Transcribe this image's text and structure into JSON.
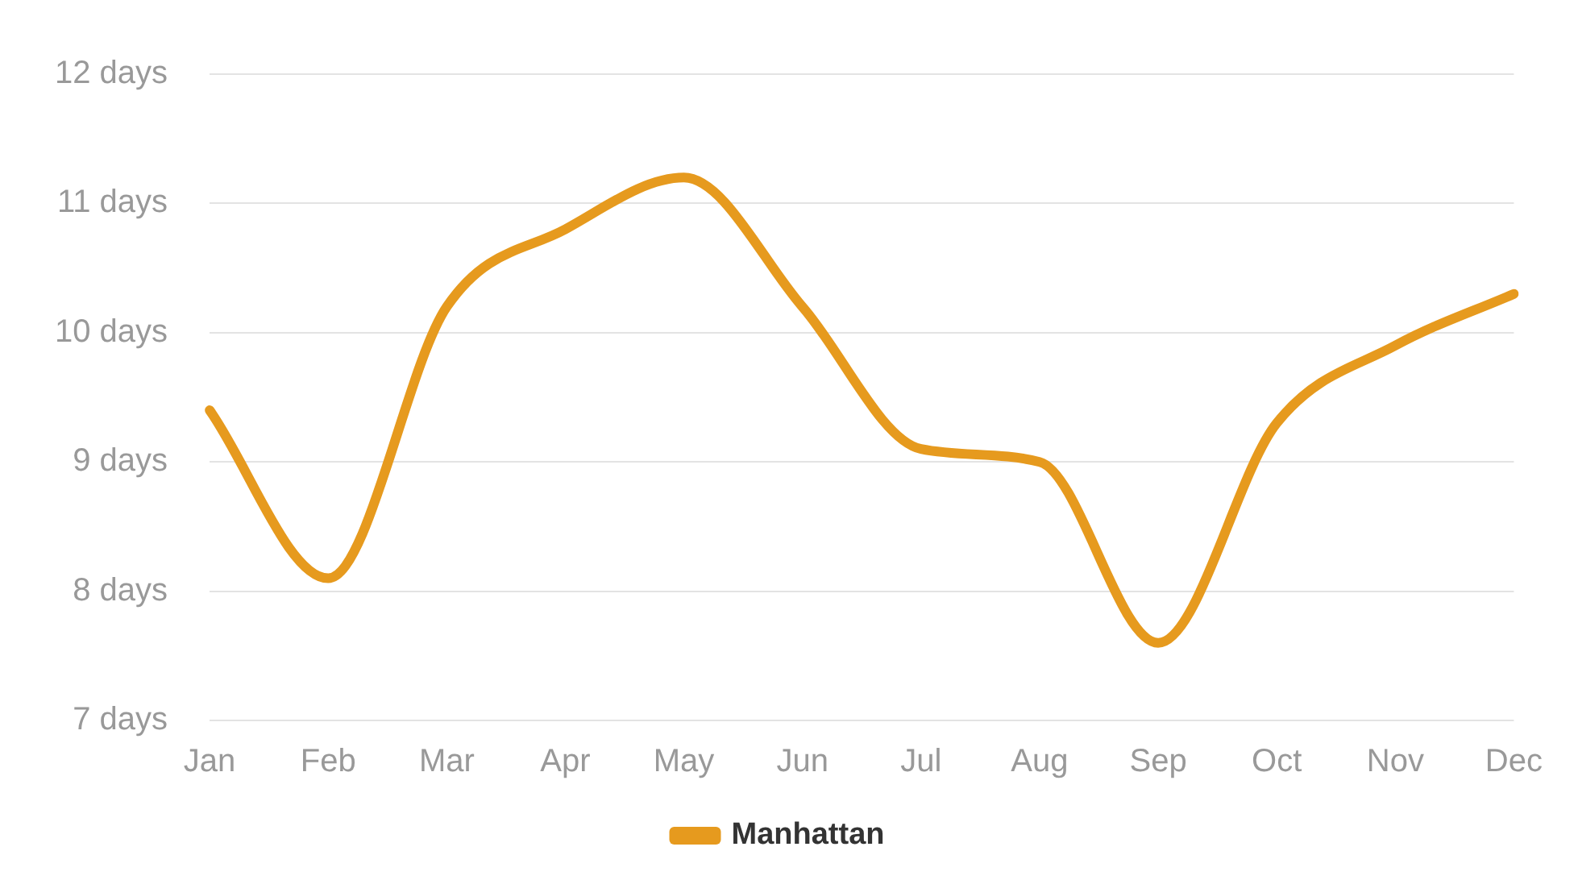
{
  "chart_data": {
    "type": "line",
    "categories": [
      "Jan",
      "Feb",
      "Mar",
      "Apr",
      "May",
      "Jun",
      "Jul",
      "Aug",
      "Sep",
      "Oct",
      "Nov",
      "Dec"
    ],
    "series": [
      {
        "name": "Manhattan",
        "color": "#e69a1e",
        "values": [
          9.4,
          8.1,
          10.2,
          10.8,
          11.2,
          10.2,
          9.1,
          9.0,
          7.6,
          9.3,
          9.9,
          10.3
        ]
      }
    ],
    "ylim": [
      7,
      12
    ],
    "yticks": [
      {
        "value": 7,
        "label": "7 days"
      },
      {
        "value": 8,
        "label": "8 days"
      },
      {
        "value": 9,
        "label": "9 days"
      },
      {
        "value": 10,
        "label": "10 days"
      },
      {
        "value": 11,
        "label": "11 days"
      },
      {
        "value": 12,
        "label": "12 days"
      }
    ],
    "grid": "y",
    "legend": "bottom",
    "marker": "none",
    "line_style": "solid"
  }
}
